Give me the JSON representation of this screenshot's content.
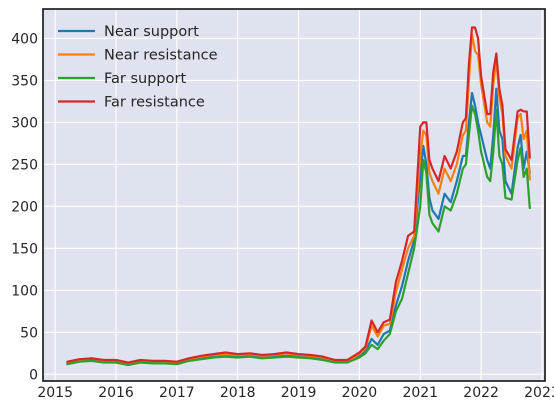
{
  "chart_data": {
    "type": "line",
    "title": "",
    "xlabel": "",
    "ylabel": "",
    "xlim": [
      2014.8,
      2023.05
    ],
    "ylim": [
      -8,
      435
    ],
    "grid": true,
    "legend_position": "top-left",
    "x_ticks": [
      2015,
      2016,
      2017,
      2018,
      2019,
      2020,
      2021,
      2022,
      2023
    ],
    "x_tick_labels": [
      "2015",
      "2016",
      "2017",
      "2018",
      "2019",
      "2020",
      "2021",
      "2022",
      "2023"
    ],
    "y_ticks": [
      0,
      50,
      100,
      150,
      200,
      250,
      300,
      350,
      400
    ],
    "y_tick_labels": [
      "0",
      "50",
      "100",
      "150",
      "200",
      "250",
      "300",
      "350",
      "400"
    ],
    "x": [
      2015.2,
      2015.4,
      2015.6,
      2015.8,
      2016.0,
      2016.2,
      2016.4,
      2016.6,
      2016.8,
      2017.0,
      2017.2,
      2017.4,
      2017.6,
      2017.8,
      2018.0,
      2018.2,
      2018.4,
      2018.6,
      2018.8,
      2019.0,
      2019.2,
      2019.4,
      2019.6,
      2019.8,
      2020.0,
      2020.1,
      2020.2,
      2020.3,
      2020.4,
      2020.5,
      2020.6,
      2020.7,
      2020.8,
      2020.9,
      2021.0,
      2021.05,
      2021.1,
      2021.15,
      2021.2,
      2021.3,
      2021.4,
      2021.5,
      2021.6,
      2021.7,
      2021.75,
      2021.8,
      2021.85,
      2021.9,
      2021.95,
      2022.0,
      2022.1,
      2022.15,
      2022.2,
      2022.25,
      2022.3,
      2022.35,
      2022.4,
      2022.5,
      2022.6,
      2022.65,
      2022.7,
      2022.75,
      2022.8
    ],
    "series": [
      {
        "name": "Near support",
        "color": "#1f77b4",
        "values": [
          13,
          16,
          17,
          15,
          15,
          12,
          15,
          14,
          14,
          13,
          17,
          19,
          21,
          22,
          21,
          22,
          20,
          21,
          22,
          21,
          20,
          18,
          15,
          15,
          22,
          28,
          42,
          35,
          48,
          52,
          82,
          105,
          135,
          160,
          235,
          272,
          250,
          210,
          195,
          185,
          215,
          205,
          230,
          260,
          260,
          300,
          335,
          320,
          300,
          285,
          255,
          245,
          285,
          340,
          290,
          280,
          230,
          215,
          270,
          285,
          245,
          265,
          240
        ]
      },
      {
        "name": "Near resistance",
        "color": "#ff7f0e",
        "values": [
          14,
          17,
          19,
          16,
          16,
          13,
          16,
          15,
          15,
          14,
          18,
          21,
          23,
          24,
          23,
          24,
          22,
          23,
          25,
          23,
          22,
          20,
          16,
          16,
          24,
          31,
          58,
          45,
          58,
          60,
          98,
          125,
          150,
          165,
          260,
          290,
          285,
          240,
          230,
          215,
          245,
          230,
          250,
          285,
          290,
          350,
          405,
          385,
          380,
          345,
          300,
          295,
          345,
          375,
          330,
          310,
          260,
          245,
          305,
          310,
          280,
          290,
          232
        ]
      },
      {
        "name": "Far support",
        "color": "#2ca02c",
        "values": [
          12,
          15,
          16,
          14,
          14,
          11,
          14,
          13,
          13,
          12,
          16,
          18,
          20,
          21,
          20,
          21,
          19,
          20,
          21,
          20,
          19,
          17,
          14,
          14,
          20,
          25,
          35,
          30,
          40,
          48,
          75,
          90,
          120,
          150,
          200,
          255,
          240,
          190,
          180,
          170,
          200,
          195,
          215,
          245,
          250,
          285,
          320,
          310,
          290,
          265,
          235,
          230,
          265,
          315,
          260,
          250,
          210,
          208,
          255,
          270,
          235,
          245,
          198
        ]
      },
      {
        "name": "Far resistance",
        "color": "#d62728",
        "values": [
          15,
          18,
          19,
          17,
          17,
          14,
          17,
          16,
          16,
          15,
          19,
          22,
          24,
          26,
          24,
          25,
          23,
          24,
          26,
          24,
          23,
          21,
          17,
          17,
          26,
          33,
          64,
          50,
          62,
          65,
          110,
          135,
          165,
          170,
          295,
          300,
          300,
          255,
          245,
          230,
          260,
          245,
          265,
          300,
          305,
          370,
          413,
          413,
          400,
          355,
          310,
          310,
          360,
          382,
          340,
          320,
          268,
          255,
          313,
          315,
          313,
          313,
          258
        ]
      }
    ]
  }
}
